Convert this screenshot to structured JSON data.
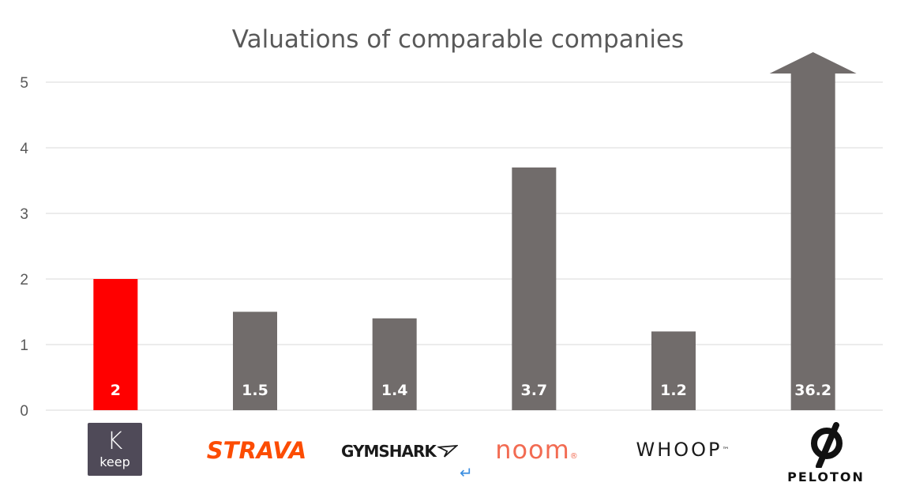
{
  "chart_data": {
    "type": "bar",
    "title": "Valuations of comparable companies",
    "categories": [
      "keep",
      "STRAVA",
      "GYMSHARK",
      "noom",
      "WHOOP",
      "PELOTON"
    ],
    "values": [
      2,
      1.5,
      1.4,
      3.7,
      1.2,
      36.2
    ],
    "value_labels": [
      "2",
      "1.5",
      "1.4",
      "3.7",
      "1.2",
      "36.2"
    ],
    "bar_colors": [
      "#ff0000",
      "#716c6b",
      "#716c6b",
      "#716c6b",
      "#716c6b",
      "#716c6b"
    ],
    "ylim": [
      0,
      5
    ],
    "yticks": [
      "0",
      "1",
      "2",
      "3",
      "4",
      "5"
    ],
    "grid": true,
    "overflow_arrow_on": "PELOTON"
  },
  "logos": {
    "keep": {
      "mark": "K",
      "word": "keep"
    },
    "strava": {
      "word": "STRAVA"
    },
    "gymshark": {
      "word": "GYMSHARK",
      "mark_icon": "gymshark-shark-icon"
    },
    "noom": {
      "word": "noom",
      "reg": "®"
    },
    "whoop": {
      "word": "WHOOP",
      "mark": "™"
    },
    "peloton": {
      "word": "PELOTON",
      "mark_icon": "peloton-p-icon"
    }
  },
  "return_glyph": "↵"
}
